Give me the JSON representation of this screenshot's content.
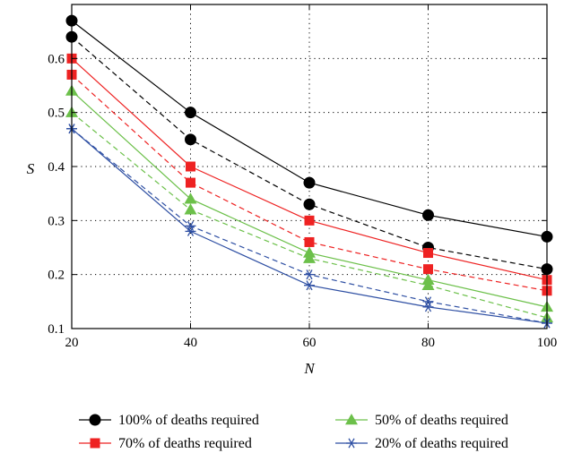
{
  "chart_data": {
    "type": "line",
    "xlabel": "N",
    "ylabel": "S",
    "xlim": [
      20,
      100
    ],
    "ylim": [
      0.1,
      0.7
    ],
    "x": [
      20,
      40,
      60,
      80,
      100
    ],
    "xticks": [
      "20",
      "40",
      "60",
      "80",
      "100"
    ],
    "yticks": [
      "0.1",
      "0.2",
      "0.3",
      "0.4",
      "0.5",
      "0.6"
    ],
    "ytick_values": [
      0.1,
      0.2,
      0.3,
      0.4,
      0.5,
      0.6
    ],
    "grid": true,
    "legend_position": "bottom",
    "series": [
      {
        "name": "100% of deaths required",
        "style": "solid",
        "marker": "circle",
        "color": "#000000",
        "values": [
          0.67,
          0.5,
          0.37,
          0.31,
          0.27
        ]
      },
      {
        "name": "100% of deaths required",
        "style": "dashed",
        "marker": "circle",
        "color": "#000000",
        "values": [
          0.64,
          0.45,
          0.33,
          0.25,
          0.21
        ]
      },
      {
        "name": "70% of deaths required",
        "style": "solid",
        "marker": "square",
        "color": "#ee2222",
        "values": [
          0.6,
          0.4,
          0.3,
          0.24,
          0.19
        ]
      },
      {
        "name": "70% of deaths required",
        "style": "dashed",
        "marker": "square",
        "color": "#ee2222",
        "values": [
          0.57,
          0.37,
          0.26,
          0.21,
          0.17
        ]
      },
      {
        "name": "50% of deaths required",
        "style": "solid",
        "marker": "triangle",
        "color": "#6cc04a",
        "values": [
          0.54,
          0.34,
          0.24,
          0.19,
          0.14
        ]
      },
      {
        "name": "50% of deaths required",
        "style": "dashed",
        "marker": "triangle",
        "color": "#6cc04a",
        "values": [
          0.5,
          0.32,
          0.23,
          0.18,
          0.12
        ]
      },
      {
        "name": "20% of deaths required",
        "style": "solid",
        "marker": "star",
        "color": "#2e4fa3",
        "values": [
          0.47,
          0.28,
          0.18,
          0.14,
          0.11
        ]
      },
      {
        "name": "20% of deaths required",
        "style": "dashed",
        "marker": "star",
        "color": "#2e4fa3",
        "values": [
          0.47,
          0.29,
          0.2,
          0.15,
          0.11
        ]
      }
    ],
    "legend": [
      {
        "label": "100% of deaths required",
        "marker": "circle",
        "color": "#000000"
      },
      {
        "label": "50% of deaths required",
        "marker": "triangle",
        "color": "#6cc04a"
      },
      {
        "label": "70% of deaths required",
        "marker": "square",
        "color": "#ee2222"
      },
      {
        "label": "20% of deaths required",
        "marker": "star",
        "color": "#2e4fa3"
      }
    ]
  }
}
